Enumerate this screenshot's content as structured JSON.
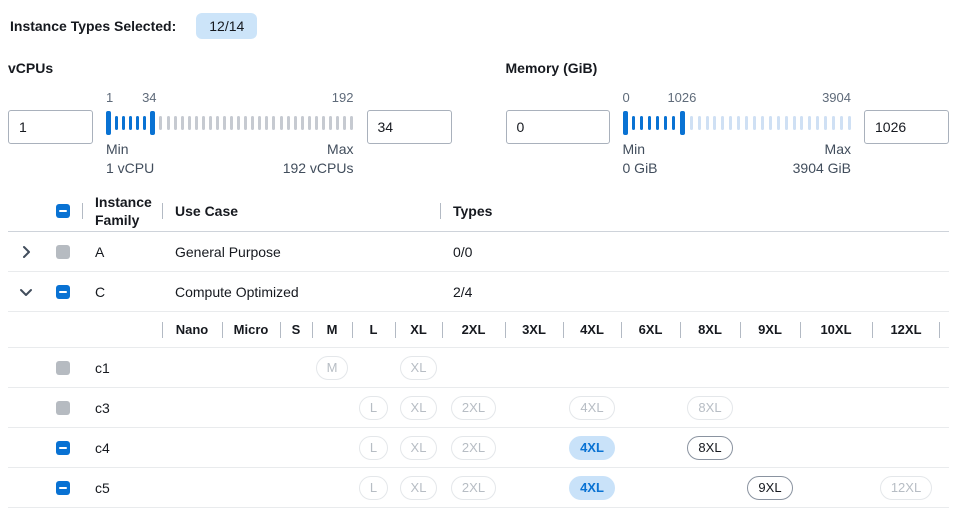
{
  "header": {
    "label": "Instance Types Selected:",
    "count_badge": "12/14"
  },
  "colors": {
    "accent_blue": "#0972d3",
    "count_badge_bg": "#cce4f9",
    "selected_badge_bg": "#c9e2f9",
    "checkbox_disabled_gray": "#b6bbc1",
    "tick_unselected_gray": "#c6cad1",
    "tick_unselected_light_blue": "#cfe0f4"
  },
  "filters": [
    {
      "label": "vCPUs",
      "low_value": "1",
      "high_value": "34",
      "scale": {
        "low": "1",
        "mid": "34",
        "max": "192",
        "mid_pct": 17.5
      },
      "range_note": {
        "min_title": "Min",
        "min_value": "1 vCPU",
        "max_title": "Max",
        "max_value": "192 vCPUs"
      },
      "ticks": {
        "count": 35,
        "low_index": 0,
        "high_index": 6,
        "unselected_color": "#c6cad1"
      }
    },
    {
      "label": "Memory (GiB)",
      "low_value": "0",
      "high_value": "1026",
      "scale": {
        "low": "0",
        "mid": "1026",
        "max": "3904",
        "mid_pct": 26
      },
      "range_note": {
        "min_title": "Min",
        "min_value": "0 GiB",
        "max_title": "Max",
        "max_value": "3904 GiB"
      },
      "ticks": {
        "count": 29,
        "low_index": 0,
        "high_index": 7,
        "unselected_color": "#cfe0f4"
      }
    }
  ],
  "table": {
    "header": {
      "family": "Instance Family",
      "use_case": "Use Case",
      "types": "Types"
    },
    "family_rows": [
      {
        "family": "A",
        "use_case": "General Purpose",
        "types": "0/0",
        "state": "collapsed",
        "checkbox": "disabled"
      },
      {
        "family": "C",
        "use_case": "Compute Optimized",
        "types": "2/4",
        "state": "expanded",
        "checkbox": "indeterminate"
      }
    ],
    "size_columns": [
      "Nano",
      "Micro",
      "S",
      "M",
      "L",
      "XL",
      "2XL",
      "3XL",
      "4XL",
      "6XL",
      "8XL",
      "9XL",
      "10XL",
      "12XL"
    ],
    "instance_rows": [
      {
        "name": "c1",
        "checkbox": "disabled",
        "badges": [
          {
            "size": "M",
            "col": 3,
            "state": "disabled"
          },
          {
            "size": "XL",
            "col": 5,
            "state": "disabled"
          }
        ]
      },
      {
        "name": "c3",
        "checkbox": "disabled",
        "badges": [
          {
            "size": "L",
            "col": 4,
            "state": "disabled"
          },
          {
            "size": "XL",
            "col": 5,
            "state": "disabled"
          },
          {
            "size": "2XL",
            "col": 6,
            "state": "disabled"
          },
          {
            "size": "4XL",
            "col": 8,
            "state": "disabled"
          },
          {
            "size": "8XL",
            "col": 10,
            "state": "disabled"
          }
        ]
      },
      {
        "name": "c4",
        "checkbox": "indeterminate",
        "badges": [
          {
            "size": "L",
            "col": 4,
            "state": "disabled"
          },
          {
            "size": "XL",
            "col": 5,
            "state": "disabled"
          },
          {
            "size": "2XL",
            "col": 6,
            "state": "disabled"
          },
          {
            "size": "4XL",
            "col": 8,
            "state": "selected"
          },
          {
            "size": "8XL",
            "col": 10,
            "state": "normal"
          }
        ]
      },
      {
        "name": "c5",
        "checkbox": "indeterminate",
        "badges": [
          {
            "size": "L",
            "col": 4,
            "state": "disabled"
          },
          {
            "size": "XL",
            "col": 5,
            "state": "disabled"
          },
          {
            "size": "2XL",
            "col": 6,
            "state": "disabled"
          },
          {
            "size": "4XL",
            "col": 8,
            "state": "selected"
          },
          {
            "size": "9XL",
            "col": 11,
            "state": "normal"
          },
          {
            "size": "12XL",
            "col": 13,
            "state": "disabled"
          }
        ]
      }
    ]
  }
}
